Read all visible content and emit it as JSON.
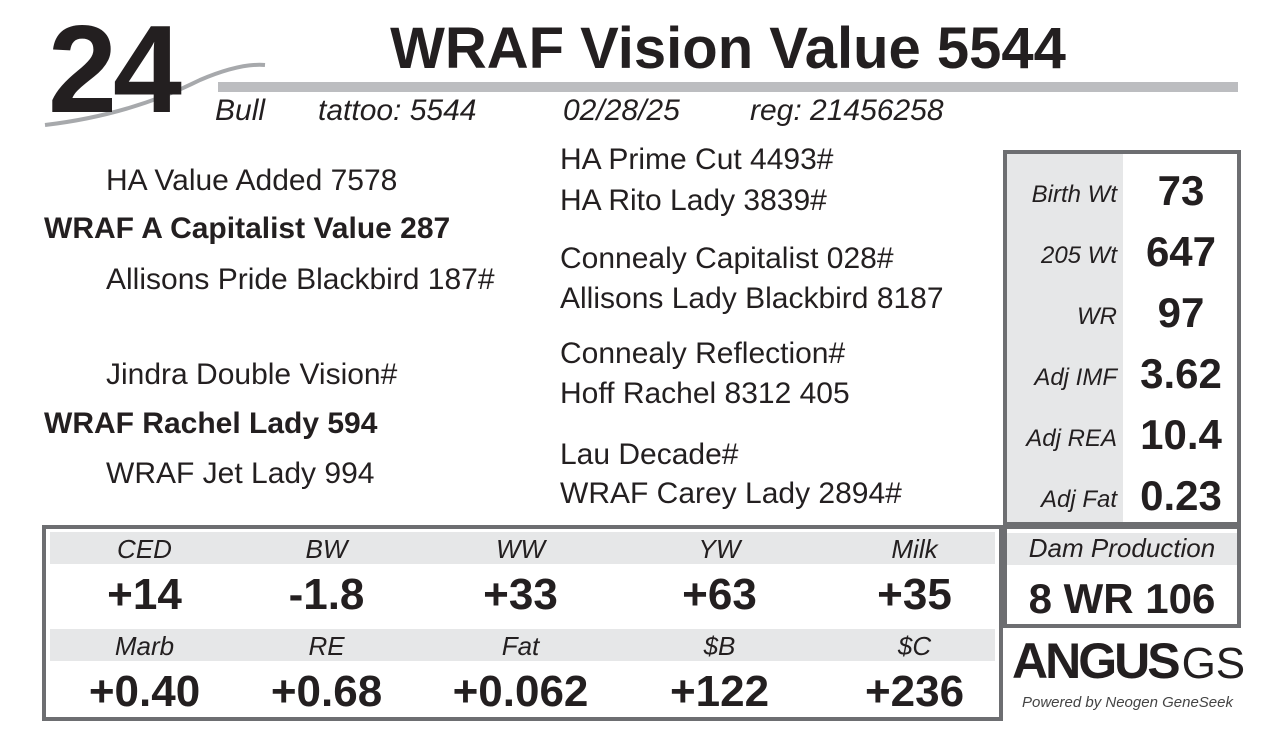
{
  "lot_number": "24",
  "title": "WRAF Vision Value 5544",
  "info": {
    "sex": "Bull",
    "tattoo": "tattoo:  5544",
    "birth_date": "02/28/25",
    "reg": "reg:  21456258"
  },
  "pedigree": {
    "sire_sire": "HA Value Added 7578",
    "sire": "WRAF A Capitalist Value 287",
    "sire_dam": "Allisons Pride Blackbird 187#",
    "dam_sire": "Jindra Double Vision#",
    "dam": "WRAF Rachel Lady 594",
    "dam_dam": "WRAF Jet Lady 994",
    "third_gen": [
      "HA Prime Cut 4493#",
      "HA Rito Lady 3839#",
      "Connealy Capitalist 028#",
      "Allisons Lady Blackbird 8187",
      "Connealy Reflection#",
      "Hoff Rachel 8312 405",
      "Lau Decade#",
      "WRAF Carey Lady 2894#"
    ]
  },
  "stats": [
    {
      "label": "Birth Wt",
      "value": "73"
    },
    {
      "label": "205 Wt",
      "value": "647"
    },
    {
      "label": "WR",
      "value": "97"
    },
    {
      "label": "Adj IMF",
      "value": "3.62"
    },
    {
      "label": "Adj REA",
      "value": "10.4"
    },
    {
      "label": "Adj Fat",
      "value": "0.23"
    }
  ],
  "epd_row1": [
    {
      "label": "CED",
      "value": "+14"
    },
    {
      "label": "BW",
      "value": "-1.8"
    },
    {
      "label": "WW",
      "value": "+33"
    },
    {
      "label": "YW",
      "value": "+63"
    },
    {
      "label": "Milk",
      "value": "+35"
    }
  ],
  "epd_row2": [
    {
      "label": "Marb",
      "value": "+0.40"
    },
    {
      "label": "RE",
      "value": "+0.68"
    },
    {
      "label": "Fat",
      "value": "+0.062"
    },
    {
      "label": "$B",
      "value": "+122"
    },
    {
      "label": "$C",
      "value": "+236"
    }
  ],
  "dam_production": {
    "label": "Dam Production",
    "value": "8 WR 106"
  },
  "logo": {
    "brand": "ANGUS",
    "suffix": "GS",
    "tagline": "Powered by Neogen GeneSeek"
  },
  "colors": {
    "border": "#6d6e71",
    "shade": "#e6e7e8",
    "bar": "#bcbdc0",
    "text": "#231f20"
  }
}
